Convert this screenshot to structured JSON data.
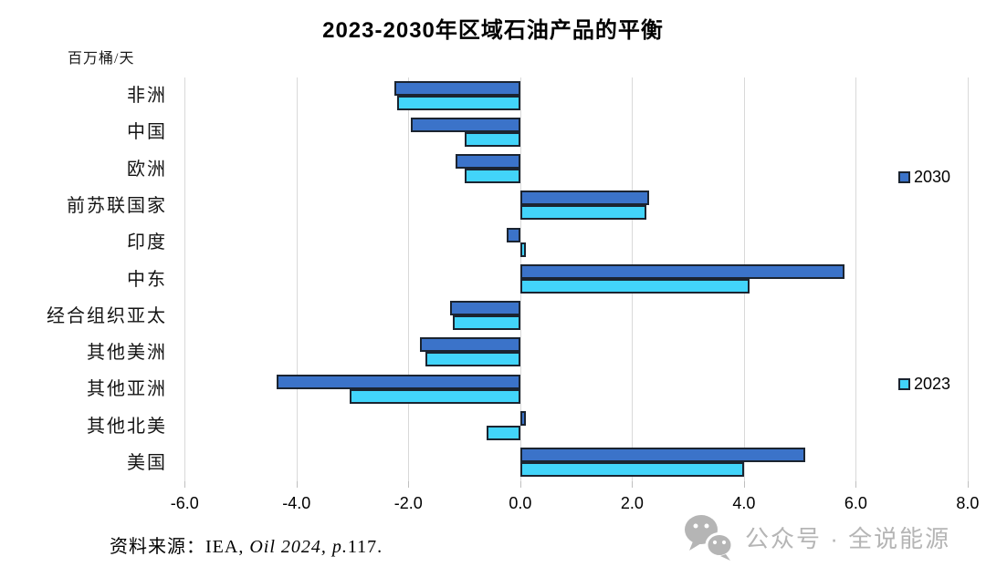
{
  "title": "2023-2030年区域石油产品的平衡",
  "unit_label": "百万桶/天",
  "legend": {
    "items": [
      {
        "label": "2030",
        "color": "#3b73c9"
      },
      {
        "label": "2023",
        "color": "#42d4fa"
      }
    ]
  },
  "source": {
    "label_prefix": "资料来源：",
    "agency": "IEA, ",
    "work_italic": "Oil 2024, p.",
    "page": "117."
  },
  "watermark": {
    "icon": "wechat-icon",
    "text": "公众号 · 全说能源",
    "color": "#b5b5b5"
  },
  "colors": {
    "series_2030": "#3b73c9",
    "series_2023": "#42d4fa",
    "bar_border": "#1b2430",
    "gridline": "#d9d9d9"
  },
  "chart_data": {
    "type": "bar",
    "orientation": "horizontal",
    "title": "2023-2030年区域石油产品的平衡",
    "xlabel": "",
    "ylabel": "百万桶/天",
    "categories": [
      "非洲",
      "中国",
      "欧洲",
      "前苏联国家",
      "印度",
      "中东",
      "经合组织亚太",
      "其他美洲",
      "其他亚洲",
      "其他北美",
      "美国"
    ],
    "series": [
      {
        "name": "2030",
        "color": "#3b73c9",
        "values": [
          -2.25,
          -1.95,
          -1.15,
          2.3,
          -0.25,
          5.8,
          -1.25,
          -1.8,
          -4.35,
          0.1,
          5.1
        ]
      },
      {
        "name": "2023",
        "color": "#42d4fa",
        "values": [
          -2.2,
          -1.0,
          -1.0,
          2.25,
          0.1,
          4.1,
          -1.2,
          -1.7,
          -3.05,
          -0.6,
          4.0
        ]
      }
    ],
    "xlim": [
      -6.25,
      8.05
    ],
    "xticks": [
      -6,
      -4,
      -2,
      0,
      2,
      4,
      6,
      8
    ],
    "xtick_labels": [
      "-6.0",
      "-4.0",
      "-2.0",
      "0.0",
      "2.0",
      "4.0",
      "6.0",
      "8.0"
    ],
    "grid": true,
    "legend_position": "right-overlay"
  }
}
